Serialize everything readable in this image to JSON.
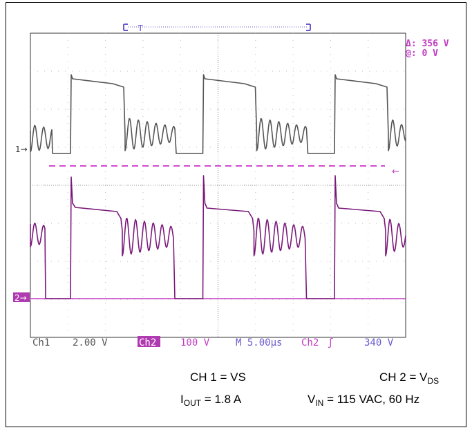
{
  "chart_data": {
    "type": "line",
    "title": "",
    "xlabel": "",
    "ylabel": "",
    "grid": true,
    "x_divisions": 10,
    "y_divisions": 8,
    "series": [
      {
        "name": "Ch1",
        "color": "#555555",
        "scale": "2.00 V"
      },
      {
        "name": "Ch2",
        "color": "#7a1a7a",
        "scale": "100 V"
      }
    ],
    "trigger_line_color": "#d04ad0"
  },
  "readouts": {
    "delta": "Δ: 356 V",
    "at": "@: 0 V",
    "ch1_marker": "1→",
    "ch2_marker": "2→",
    "trigger_arrow": "←",
    "trigger_T": "T"
  },
  "status_bar": {
    "ch1_label": "Ch1",
    "ch1_scale": "2.00 V",
    "ch2_label": "Ch2",
    "ch2_scale": "100 V",
    "timebase": "M 5.00µs",
    "trigger_src": "Ch2",
    "trigger_slope": "ʃ",
    "trigger_level": "340 V"
  },
  "captions": {
    "ch1": "CH 1 = VS",
    "ch2_prefix": "CH 2 = V",
    "ch2_sub": "DS",
    "iout_prefix": "I",
    "iout_sub": "OUT",
    "iout_value": " = 1.8 A",
    "vin_prefix": "V",
    "vin_sub": "IN",
    "vin_value": " = 115 VAC, 60 Hz"
  }
}
